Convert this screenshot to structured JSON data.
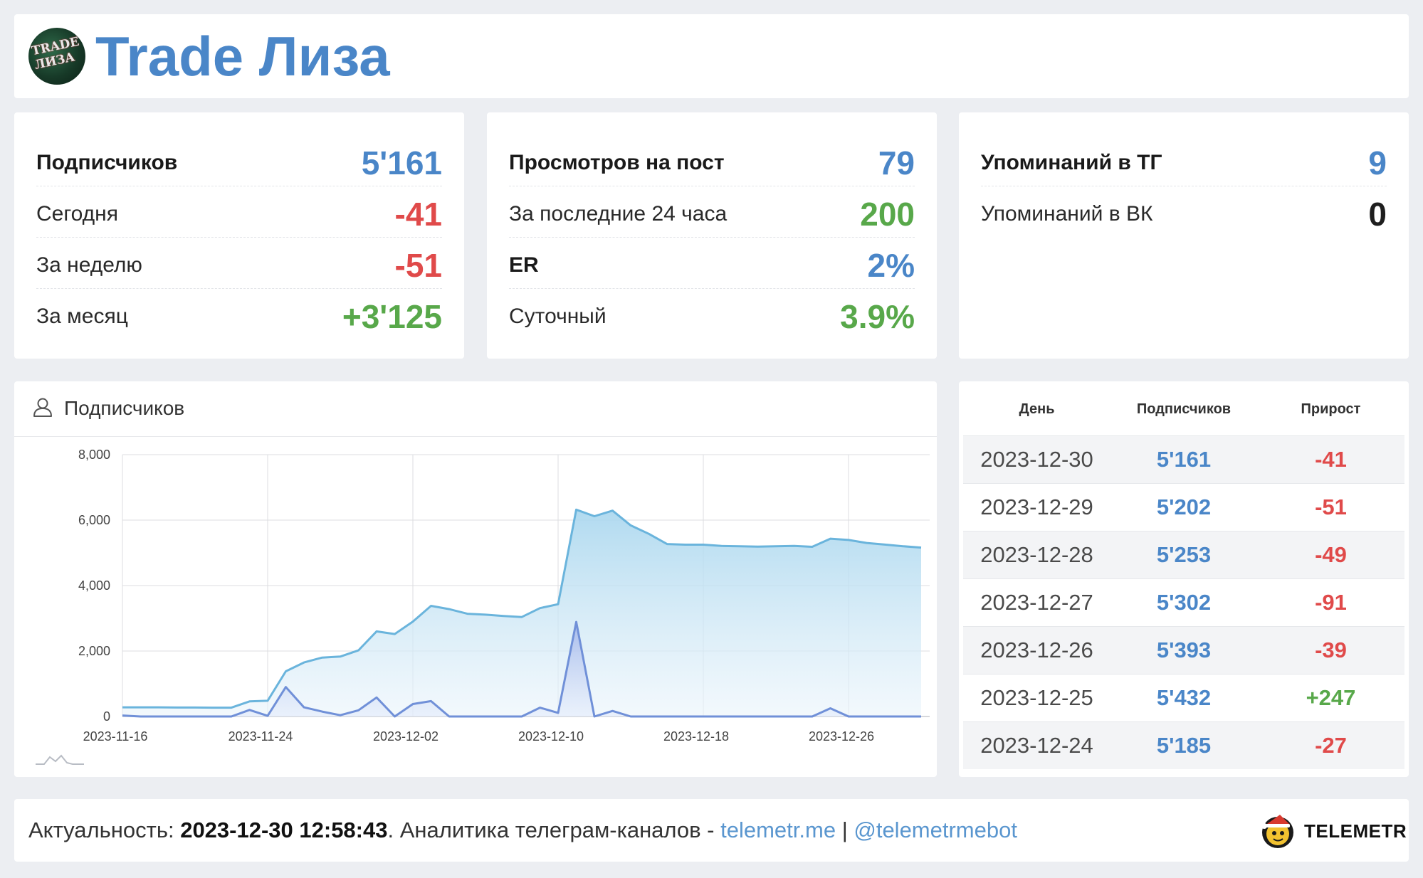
{
  "header": {
    "channel_title": "Trade Лиза",
    "avatar_text": "TRADE ЛИЗА"
  },
  "subscribers_card": {
    "rows": [
      {
        "label": "Подписчиков",
        "value": "5'161",
        "color": "#4a86c8"
      },
      {
        "label": "Сегодня",
        "value": "-41",
        "color": "#e04a4a"
      },
      {
        "label": "За неделю",
        "value": "-51",
        "color": "#e04a4a"
      },
      {
        "label": "За месяц",
        "value": "+3'125",
        "color": "#58a84a"
      }
    ]
  },
  "views_card": {
    "rows": [
      {
        "label": "Просмотров на пост",
        "value": "79",
        "color": "#4a86c8"
      },
      {
        "label": "За последние 24 часа",
        "value": "200",
        "color": "#58a84a"
      },
      {
        "label": "ER",
        "value": "2%",
        "color": "#4a86c8"
      },
      {
        "label": "Суточный",
        "value": "3.9%",
        "color": "#58a84a"
      }
    ]
  },
  "mentions_card": {
    "rows": [
      {
        "label": "Упоминаний в ТГ",
        "value": "9",
        "color": "#4a86c8"
      },
      {
        "label": "Упоминаний в ВК",
        "value": "0",
        "color": "#1e1e1e"
      }
    ]
  },
  "chart_panel": {
    "title": "Подписчиков",
    "icon": "user-icon"
  },
  "chart_data": {
    "type": "area",
    "x_start": "2023-11-16",
    "x_end": "2023-12-30",
    "x_ticks": [
      "2023-11-16",
      "2023-11-24",
      "2023-12-02",
      "2023-12-10",
      "2023-12-18",
      "2023-12-26"
    ],
    "y_ticks": [
      "0",
      "2,000",
      "4,000",
      "6,000",
      "8,000"
    ],
    "ylim": [
      0,
      8000
    ],
    "grid": true,
    "series": [
      {
        "type": "area",
        "color": "#6ab4dc",
        "values": [
          [
            "2023-11-16",
            280
          ],
          [
            "2023-11-17",
            280
          ],
          [
            "2023-11-18",
            280
          ],
          [
            "2023-11-19",
            275
          ],
          [
            "2023-11-20",
            275
          ],
          [
            "2023-11-21",
            270
          ],
          [
            "2023-11-22",
            270
          ],
          [
            "2023-11-23",
            460
          ],
          [
            "2023-11-24",
            480
          ],
          [
            "2023-11-25",
            1380
          ],
          [
            "2023-11-26",
            1650
          ],
          [
            "2023-11-27",
            1800
          ],
          [
            "2023-11-28",
            1830
          ],
          [
            "2023-11-29",
            2020
          ],
          [
            "2023-11-30",
            2600
          ],
          [
            "2023-12-01",
            2520
          ],
          [
            "2023-12-02",
            2900
          ],
          [
            "2023-12-03",
            3380
          ],
          [
            "2023-12-04",
            3280
          ],
          [
            "2023-12-05",
            3140
          ],
          [
            "2023-12-06",
            3110
          ],
          [
            "2023-12-07",
            3070
          ],
          [
            "2023-12-08",
            3040
          ],
          [
            "2023-12-09",
            3310
          ],
          [
            "2023-12-10",
            3430
          ],
          [
            "2023-12-11",
            6320
          ],
          [
            "2023-12-12",
            6120
          ],
          [
            "2023-12-13",
            6290
          ],
          [
            "2023-12-14",
            5840
          ],
          [
            "2023-12-15",
            5580
          ],
          [
            "2023-12-16",
            5270
          ],
          [
            "2023-12-17",
            5250
          ],
          [
            "2023-12-18",
            5250
          ],
          [
            "2023-12-19",
            5210
          ],
          [
            "2023-12-20",
            5200
          ],
          [
            "2023-12-21",
            5190
          ],
          [
            "2023-12-22",
            5200
          ],
          [
            "2023-12-23",
            5210
          ],
          [
            "2023-12-24",
            5185
          ],
          [
            "2023-12-25",
            5432
          ],
          [
            "2023-12-26",
            5393
          ],
          [
            "2023-12-27",
            5302
          ],
          [
            "2023-12-28",
            5253
          ],
          [
            "2023-12-29",
            5202
          ],
          [
            "2023-12-30",
            5161
          ]
        ]
      },
      {
        "type": "area",
        "color": "#7090d8",
        "values": [
          [
            "2023-11-16",
            30
          ],
          [
            "2023-11-17",
            0
          ],
          [
            "2023-11-18",
            0
          ],
          [
            "2023-11-19",
            0
          ],
          [
            "2023-11-20",
            0
          ],
          [
            "2023-11-21",
            0
          ],
          [
            "2023-11-22",
            0
          ],
          [
            "2023-11-23",
            200
          ],
          [
            "2023-11-24",
            20
          ],
          [
            "2023-11-25",
            900
          ],
          [
            "2023-11-26",
            280
          ],
          [
            "2023-11-27",
            150
          ],
          [
            "2023-11-28",
            40
          ],
          [
            "2023-11-29",
            190
          ],
          [
            "2023-11-30",
            580
          ],
          [
            "2023-12-01",
            0
          ],
          [
            "2023-12-02",
            380
          ],
          [
            "2023-12-03",
            470
          ],
          [
            "2023-12-04",
            0
          ],
          [
            "2023-12-05",
            0
          ],
          [
            "2023-12-06",
            0
          ],
          [
            "2023-12-07",
            0
          ],
          [
            "2023-12-08",
            0
          ],
          [
            "2023-12-09",
            270
          ],
          [
            "2023-12-10",
            110
          ],
          [
            "2023-12-11",
            2890
          ],
          [
            "2023-12-12",
            0
          ],
          [
            "2023-12-13",
            170
          ],
          [
            "2023-12-14",
            0
          ],
          [
            "2023-12-15",
            0
          ],
          [
            "2023-12-16",
            0
          ],
          [
            "2023-12-17",
            0
          ],
          [
            "2023-12-18",
            0
          ],
          [
            "2023-12-19",
            0
          ],
          [
            "2023-12-20",
            0
          ],
          [
            "2023-12-21",
            0
          ],
          [
            "2023-12-22",
            0
          ],
          [
            "2023-12-23",
            0
          ],
          [
            "2023-12-24",
            0
          ],
          [
            "2023-12-25",
            250
          ],
          [
            "2023-12-26",
            0
          ],
          [
            "2023-12-27",
            0
          ],
          [
            "2023-12-28",
            0
          ],
          [
            "2023-12-29",
            0
          ],
          [
            "2023-12-30",
            0
          ]
        ]
      }
    ]
  },
  "table": {
    "headers": {
      "day": "День",
      "subs": "Подписчиков",
      "delta": "Прирост"
    },
    "rows": [
      {
        "day": "2023-12-30",
        "subs": "5'161",
        "delta": "-41",
        "delta_color": "#e04a4a"
      },
      {
        "day": "2023-12-29",
        "subs": "5'202",
        "delta": "-51",
        "delta_color": "#e04a4a"
      },
      {
        "day": "2023-12-28",
        "subs": "5'253",
        "delta": "-49",
        "delta_color": "#e04a4a"
      },
      {
        "day": "2023-12-27",
        "subs": "5'302",
        "delta": "-91",
        "delta_color": "#e04a4a"
      },
      {
        "day": "2023-12-26",
        "subs": "5'393",
        "delta": "-39",
        "delta_color": "#e04a4a"
      },
      {
        "day": "2023-12-25",
        "subs": "5'432",
        "delta": "+247",
        "delta_color": "#58a84a"
      },
      {
        "day": "2023-12-24",
        "subs": "5'185",
        "delta": "-27",
        "delta_color": "#e04a4a"
      }
    ]
  },
  "footer": {
    "freshness_label": "Актуальность: ",
    "freshness_value": "2023-12-30 12:58:43",
    "description": ". Аналитика телеграм-каналов - ",
    "site_link": "telemetr.me",
    "separator": " | ",
    "bot_link": "@telemetrmebot",
    "brand": "TELEMETR"
  },
  "colors": {
    "accent_blue": "#4a86c8",
    "negative_red": "#e04a4a",
    "positive_green": "#58a84a",
    "link_blue": "#5a96cf"
  }
}
